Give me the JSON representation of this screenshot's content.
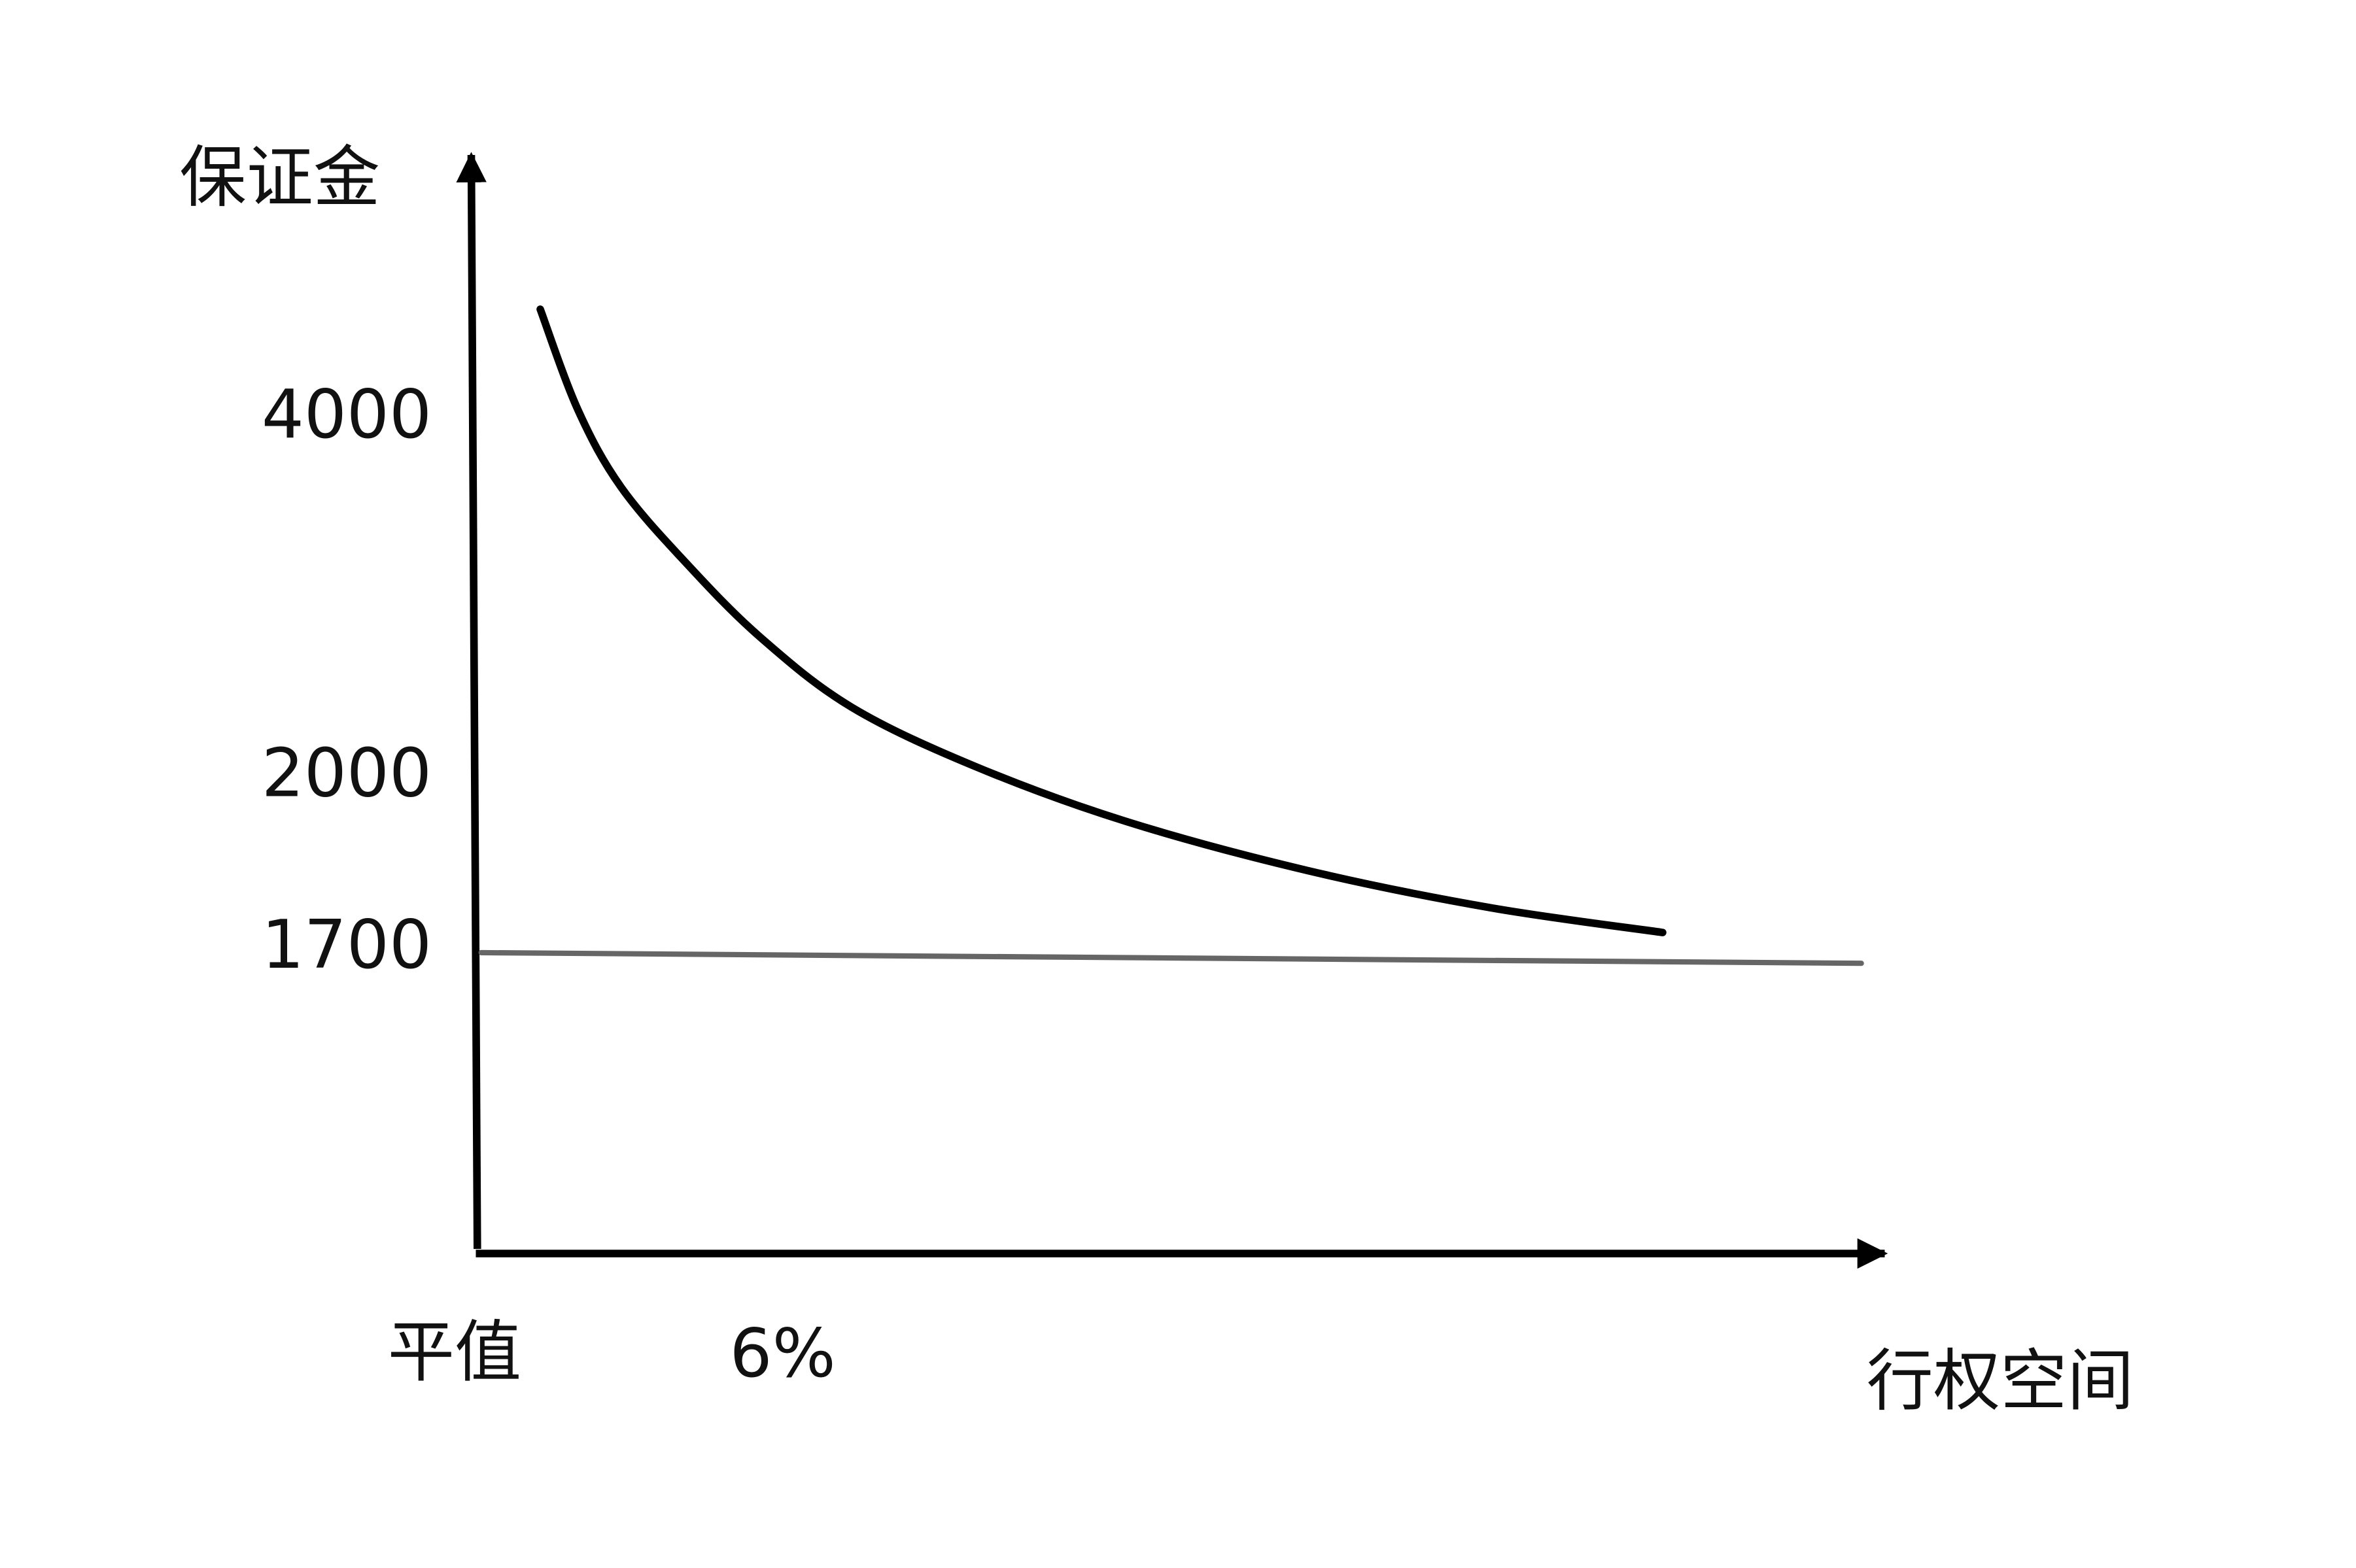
{
  "chart_data": {
    "type": "line",
    "title": "",
    "ylabel": "保证金",
    "xlabel": "行权空间",
    "x_tick_labels": [
      {
        "label": "平值",
        "value": 0
      },
      {
        "label": "6%",
        "value": 6
      }
    ],
    "y_tick_labels": [
      {
        "label": "4000",
        "value": 4000
      },
      {
        "label": "2000",
        "value": 2000
      },
      {
        "label": "1700",
        "value": 1700
      }
    ],
    "grid": false,
    "series": [
      {
        "color": "#000000",
        "x": [
          1.2,
          1.9,
          2.7,
          3.9,
          5.3,
          7.0,
          9.3,
          12.1,
          15.5,
          18.9,
          22.1
        ],
        "y": [
          4580,
          4020,
          3590,
          3170,
          2750,
          2360,
          2030,
          1920,
          1840,
          1780,
          1740
        ]
      },
      {
        "color": "#666666",
        "x": [
          0.1,
          25.8
        ],
        "y": [
          1700,
          1700
        ]
      }
    ]
  }
}
